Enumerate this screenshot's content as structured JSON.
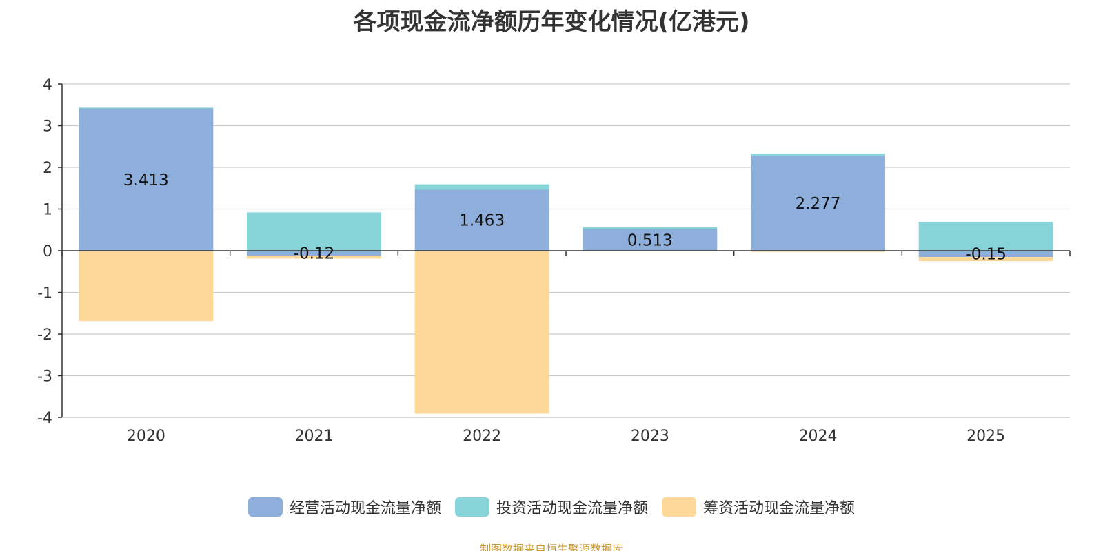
{
  "chart_data": {
    "type": "bar",
    "stacked": true,
    "title": "各项现金流净额历年变化情况(亿港元)",
    "categories": [
      "2020",
      "2021",
      "2022",
      "2023",
      "2024",
      "2025"
    ],
    "series": [
      {
        "name": "经营活动现金流量净额",
        "color": "#8eaedb",
        "values": [
          3.413,
          -0.12,
          1.463,
          0.513,
          2.277,
          -0.15
        ],
        "labels": [
          "3.413",
          "-0.12",
          "1.463",
          "0.513",
          "2.277",
          "-0.15"
        ]
      },
      {
        "name": "投资活动现金流量净额",
        "color": "#87d5d8",
        "values": [
          0.02,
          0.92,
          0.13,
          0.05,
          0.05,
          0.69
        ],
        "labels": []
      },
      {
        "name": "筹资活动现金流量净额",
        "color": "#fdd899",
        "values": [
          -1.69,
          -0.07,
          -3.91,
          -0.01,
          -0.03,
          -0.1
        ],
        "labels": []
      }
    ],
    "yticks": [
      "4",
      "3",
      "2",
      "1",
      "0",
      "-1",
      "-2",
      "-3",
      "-4"
    ],
    "ylim": [
      -4,
      4
    ],
    "grid": true,
    "legend_position": "bottom"
  },
  "footer": {
    "source": "制图数据来自恒生聚源数据库"
  }
}
